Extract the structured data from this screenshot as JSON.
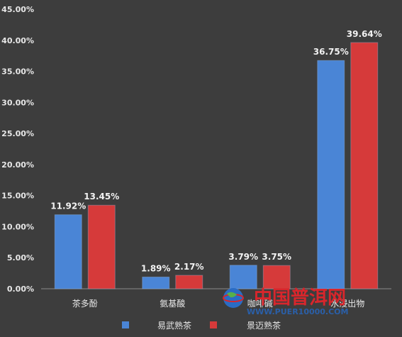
{
  "chart_data": {
    "type": "bar",
    "categories": [
      "茶多酚",
      "氨基酸",
      "咖啡碱",
      "水浸出物"
    ],
    "series": [
      {
        "name": "易武熟茶",
        "values": [
          11.92,
          1.89,
          3.79,
          36.75
        ],
        "labels": [
          "11.92%",
          "1.89%",
          "3.79%",
          "36.75%"
        ],
        "color": "#4a85d6"
      },
      {
        "name": "景迈熟茶",
        "values": [
          13.45,
          2.17,
          3.75,
          39.64
        ],
        "labels": [
          "13.45%",
          "2.17%",
          "3.75%",
          "39.64%"
        ],
        "color": "#d63a3a"
      }
    ],
    "ylim": [
      0,
      45
    ],
    "yticks": [
      "0.00%",
      "5.00%",
      "10.00%",
      "15.00%",
      "20.00%",
      "25.00%",
      "30.00%",
      "35.00%",
      "40.00%",
      "45.00%"
    ],
    "legend_position": "bottom",
    "grid": false,
    "title": "",
    "xlabel": "",
    "ylabel": ""
  },
  "watermark": {
    "title": "中国普洱网",
    "url": "WWW.PUER10000.COM"
  }
}
